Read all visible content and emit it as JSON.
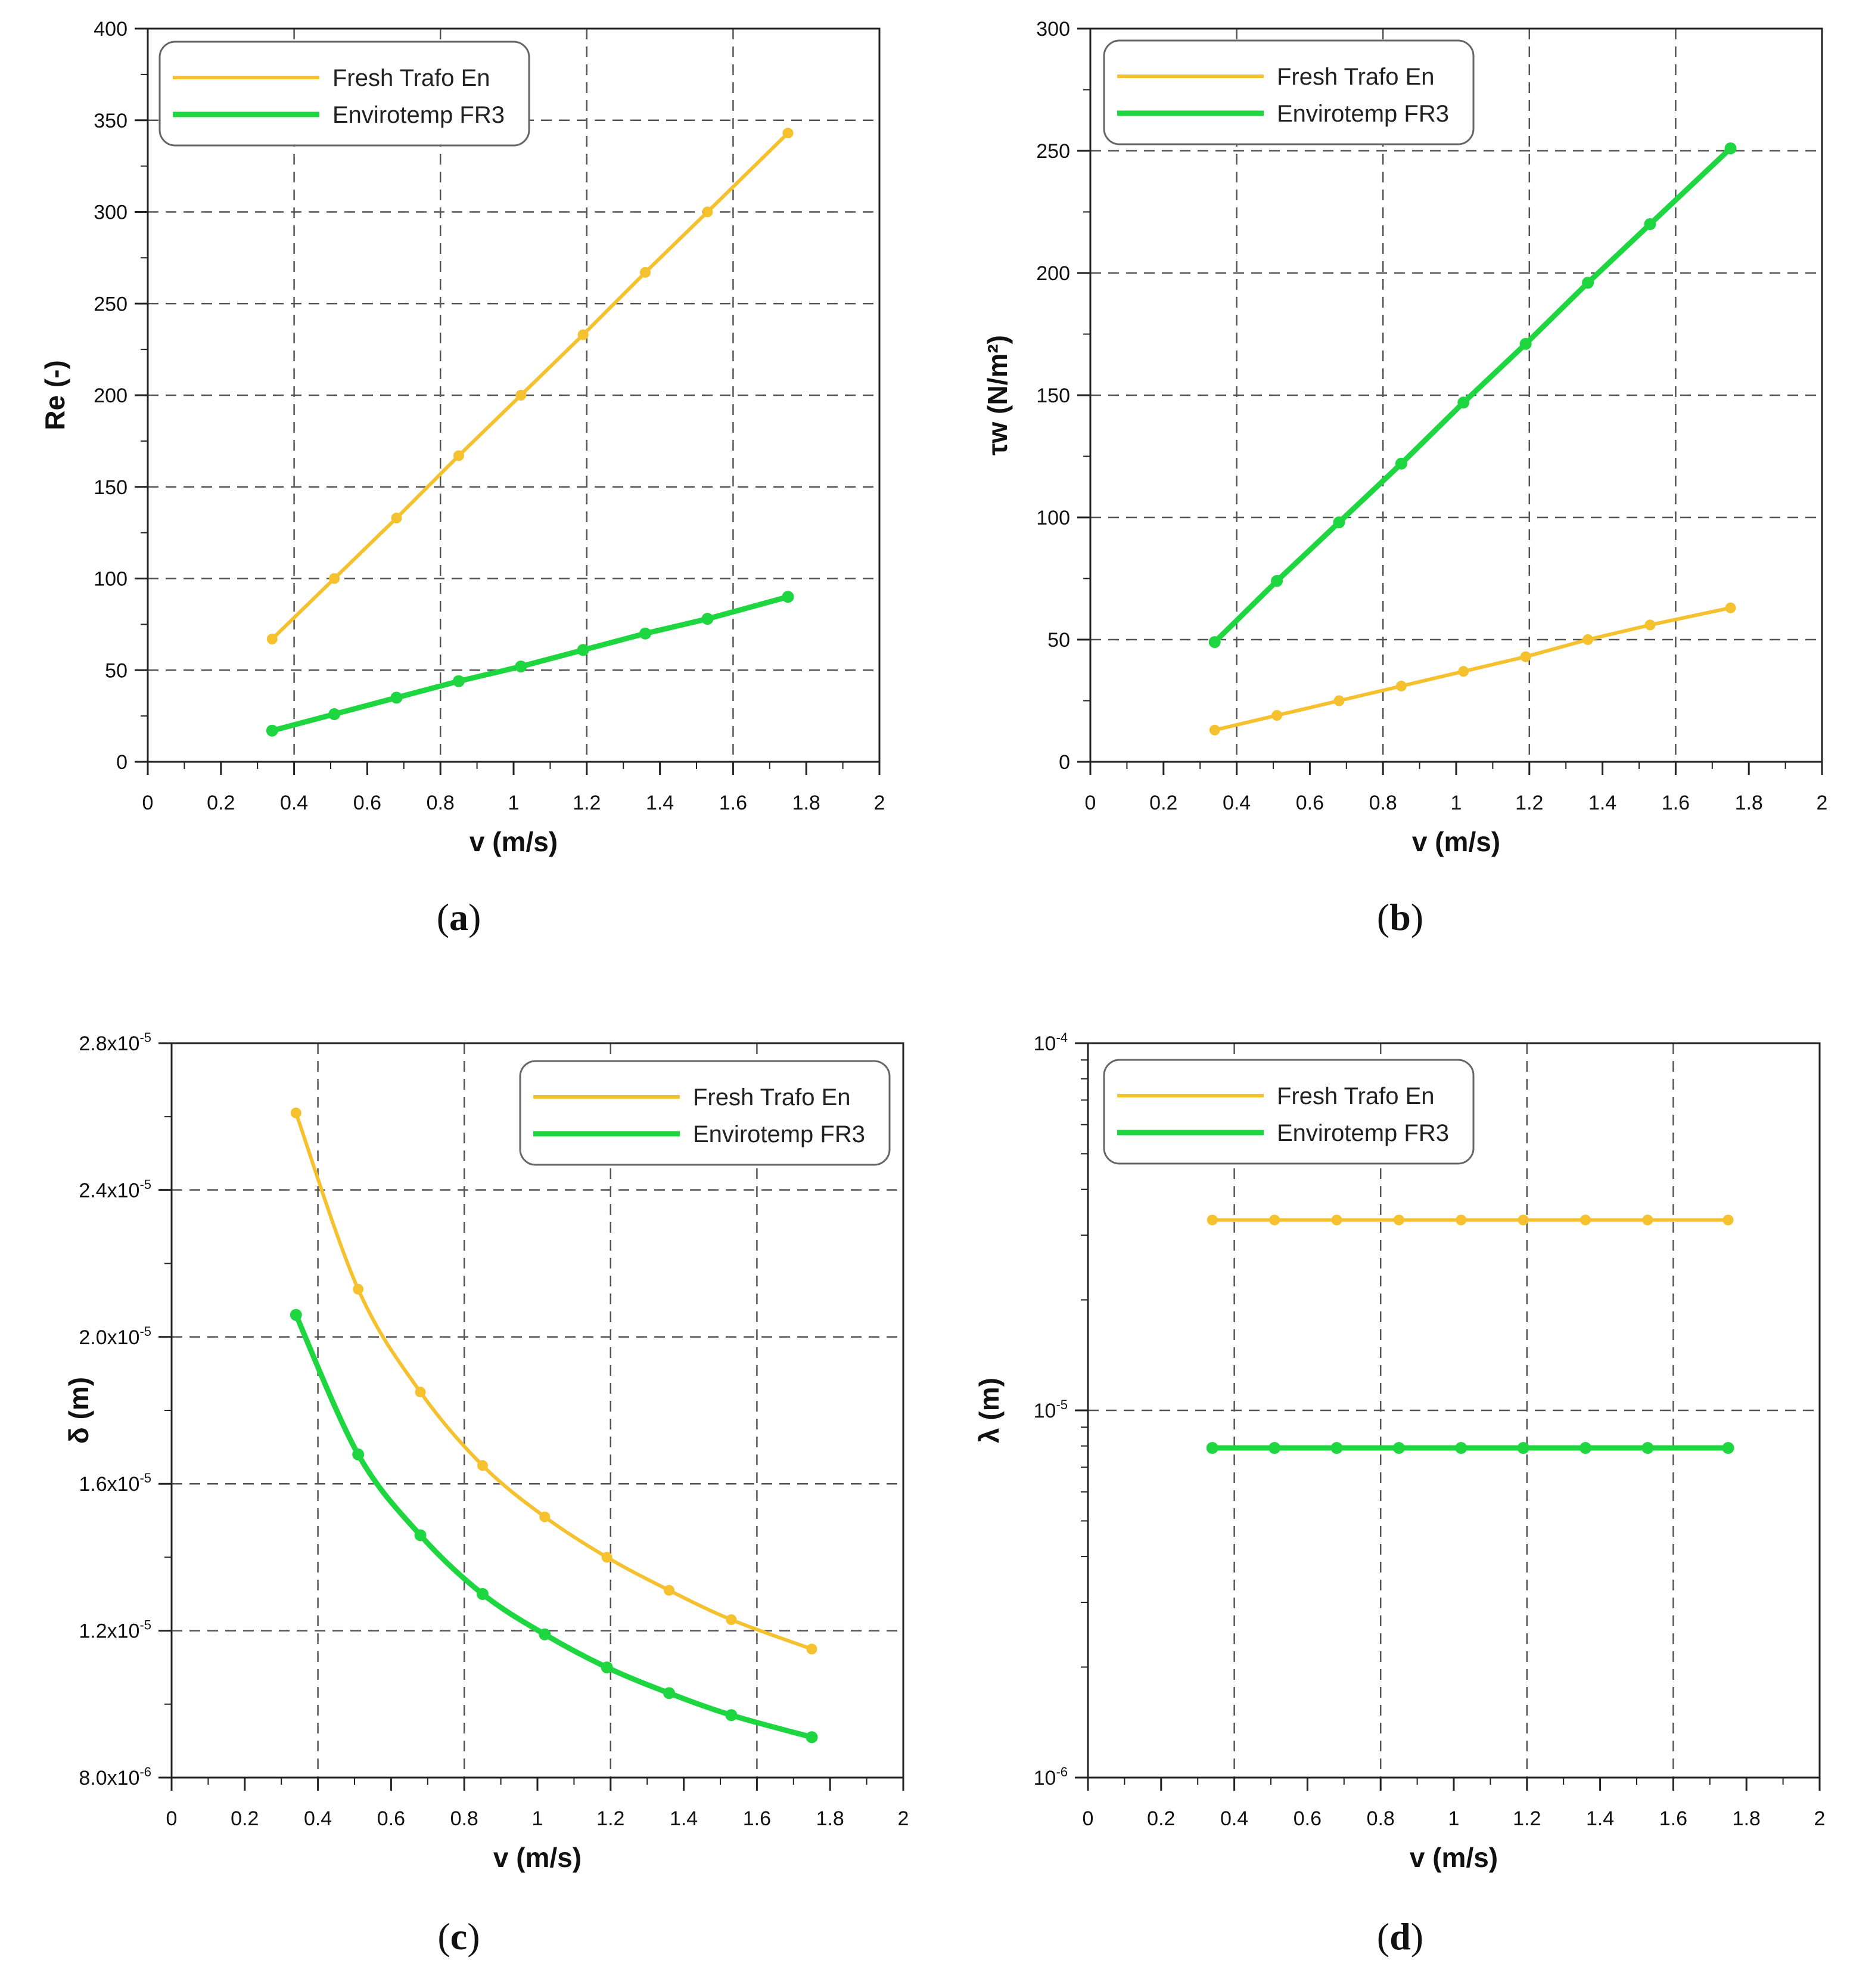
{
  "colors": {
    "fresh_trafo_en": "#F5C12E",
    "envirotemp_fr3": "#1ED640",
    "grid": "#555555"
  },
  "chart_data": [
    {
      "type": "line",
      "caption": "a",
      "xlabel": "v (m/s)",
      "ylabel": "Re (-)",
      "xlim": [
        0,
        2
      ],
      "ylim": [
        0,
        400
      ],
      "xticks": [
        "0",
        "0.2",
        "0.4",
        "0.6",
        "0.8",
        "1",
        "1.2",
        "1.4",
        "1.6",
        "1.8",
        "2"
      ],
      "yticks": [
        "0",
        "50",
        "100",
        "150",
        "200",
        "250",
        "300",
        "350",
        "400"
      ],
      "x": [
        0.34,
        0.51,
        0.68,
        0.85,
        1.02,
        1.19,
        1.36,
        1.53,
        1.75
      ],
      "series": [
        {
          "name": "Fresh Trafo En",
          "values": [
            67,
            100,
            133,
            167,
            200,
            233,
            267,
            300,
            343
          ]
        },
        {
          "name": "Envirotemp FR3",
          "values": [
            17,
            26,
            35,
            44,
            52,
            61,
            70,
            78,
            90
          ]
        }
      ],
      "legend": "top-left",
      "grid": true
    },
    {
      "type": "line",
      "caption": "b",
      "xlabel": "v (m/s)",
      "ylabel": "τw (N/m²)",
      "xlim": [
        0,
        2
      ],
      "ylim": [
        0,
        300
      ],
      "xticks": [
        "0",
        "0.2",
        "0.4",
        "0.6",
        "0.8",
        "1",
        "1.2",
        "1.4",
        "1.6",
        "1.8",
        "2"
      ],
      "yticks": [
        "0",
        "50",
        "100",
        "150",
        "200",
        "250",
        "300"
      ],
      "x": [
        0.34,
        0.51,
        0.68,
        0.85,
        1.02,
        1.19,
        1.36,
        1.53,
        1.75
      ],
      "series": [
        {
          "name": "Fresh Trafo En",
          "values": [
            13,
            19,
            25,
            31,
            37,
            43,
            50,
            56,
            63
          ]
        },
        {
          "name": "Envirotemp FR3",
          "values": [
            49,
            74,
            98,
            122,
            147,
            171,
            196,
            220,
            251
          ]
        }
      ],
      "legend": "top-left",
      "grid": true
    },
    {
      "type": "line",
      "caption": "c",
      "xlabel": "v (m/s)",
      "ylabel": "δ (m)",
      "xlim": [
        0,
        2
      ],
      "ylim": [
        8e-06,
        2.8e-05
      ],
      "xticks": [
        "0",
        "0.2",
        "0.4",
        "0.6",
        "0.8",
        "1",
        "1.2",
        "1.4",
        "1.6",
        "1.8",
        "2"
      ],
      "yticks": [
        {
          "value": 8e-06,
          "mant": "8.0x10",
          "exp": "-6"
        },
        {
          "value": 1.2e-05,
          "mant": "1.2x10",
          "exp": "-5"
        },
        {
          "value": 1.6e-05,
          "mant": "1.6x10",
          "exp": "-5"
        },
        {
          "value": 2e-05,
          "mant": "2.0x10",
          "exp": "-5"
        },
        {
          "value": 2.4e-05,
          "mant": "2.4x10",
          "exp": "-5"
        },
        {
          "value": 2.8e-05,
          "mant": "2.8x10",
          "exp": "-5"
        }
      ],
      "x": [
        0.34,
        0.51,
        0.68,
        0.85,
        1.02,
        1.19,
        1.36,
        1.53,
        1.75
      ],
      "series": [
        {
          "name": "Fresh Trafo En",
          "values": [
            2.61e-05,
            2.13e-05,
            1.85e-05,
            1.65e-05,
            1.51e-05,
            1.4e-05,
            1.31e-05,
            1.23e-05,
            1.15e-05
          ]
        },
        {
          "name": "Envirotemp FR3",
          "values": [
            2.06e-05,
            1.68e-05,
            1.46e-05,
            1.3e-05,
            1.19e-05,
            1.1e-05,
            1.03e-05,
            9.7e-06,
            9.1e-06
          ]
        }
      ],
      "legend": "top-right",
      "grid": true
    },
    {
      "type": "line",
      "caption": "d",
      "xlabel": "v (m/s)",
      "ylabel": "λ (m)",
      "xlim": [
        0,
        2
      ],
      "ylim": [
        1e-06,
        0.0001
      ],
      "yscale": "log",
      "xticks": [
        "0",
        "0.2",
        "0.4",
        "0.6",
        "0.8",
        "1",
        "1.2",
        "1.4",
        "1.6",
        "1.8",
        "2"
      ],
      "yticks": [
        {
          "value": 1e-06,
          "mant": "10",
          "exp": "-6"
        },
        {
          "value": 1e-05,
          "mant": "10",
          "exp": "-5"
        },
        {
          "value": 0.0001,
          "mant": "10",
          "exp": "-4"
        }
      ],
      "x": [
        0.34,
        0.51,
        0.68,
        0.85,
        1.02,
        1.19,
        1.36,
        1.53,
        1.75
      ],
      "series": [
        {
          "name": "Fresh Trafo En",
          "values": [
            3.3e-05,
            3.3e-05,
            3.3e-05,
            3.3e-05,
            3.3e-05,
            3.3e-05,
            3.3e-05,
            3.3e-05,
            3.3e-05
          ]
        },
        {
          "name": "Envirotemp FR3",
          "values": [
            7.9e-06,
            7.9e-06,
            7.9e-06,
            7.9e-06,
            7.9e-06,
            7.9e-06,
            7.9e-06,
            7.9e-06,
            7.9e-06
          ]
        }
      ],
      "legend": "top-left",
      "grid": true
    }
  ]
}
